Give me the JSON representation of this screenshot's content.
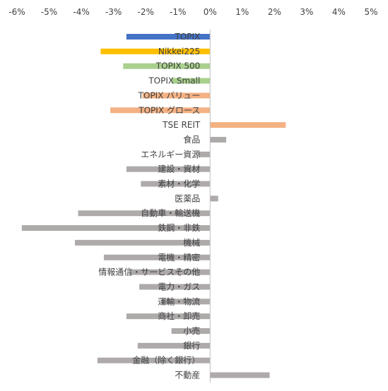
{
  "chart_data": {
    "type": "bar",
    "orientation": "horizontal",
    "x_ticks": [
      "-6%",
      "-5%",
      "-4%",
      "-3%",
      "-2%",
      "-1%",
      "0%",
      "1%",
      "2%",
      "3%",
      "4%",
      "5%"
    ],
    "xlim": [
      -6,
      5
    ],
    "grid": false,
    "colors": {
      "topix": "#4472C4",
      "nikkei": "#FFC000",
      "green": "#A9D18E",
      "orange": "#F4B183",
      "gray": "#AEAAAA"
    },
    "bars": [
      {
        "label": "TOPIX",
        "value": -2.6,
        "color": "#4472C4"
      },
      {
        "label": "Nikkei225",
        "value": -3.4,
        "color": "#FFC000"
      },
      {
        "label": "TOPIX 500",
        "value": -2.7,
        "color": "#A9D18E"
      },
      {
        "label": "TOPIX Small",
        "value": -1.2,
        "color": "#A9D18E"
      },
      {
        "label": "TOPIX バリュー",
        "value": -2.1,
        "color": "#F4B183"
      },
      {
        "label": "TOPIX グロース",
        "value": -3.1,
        "color": "#F4B183"
      },
      {
        "label": "TSE REIT",
        "value": 2.35,
        "color": "#F4B183"
      },
      {
        "label": "食品",
        "value": 0.5,
        "color": "#AEAAAA"
      },
      {
        "label": "エネルギー資源",
        "value": -0.35,
        "color": "#AEAAAA"
      },
      {
        "label": "建設・資材",
        "value": -2.6,
        "color": "#AEAAAA"
      },
      {
        "label": "素材・化学",
        "value": -2.15,
        "color": "#AEAAAA"
      },
      {
        "label": "医薬品",
        "value": 0.25,
        "color": "#AEAAAA"
      },
      {
        "label": "自動車・輸送機",
        "value": -4.1,
        "color": "#AEAAAA"
      },
      {
        "label": "鉄鋼・非鉄",
        "value": -5.85,
        "color": "#AEAAAA"
      },
      {
        "label": "機械",
        "value": -4.2,
        "color": "#AEAAAA"
      },
      {
        "label": "電機・精密",
        "value": -3.3,
        "color": "#AEAAAA"
      },
      {
        "label": "情報通信・サービスその他",
        "value": -2.5,
        "color": "#AEAAAA"
      },
      {
        "label": "電力・ガス",
        "value": -2.2,
        "color": "#AEAAAA"
      },
      {
        "label": "運輸・物流",
        "value": -1.5,
        "color": "#AEAAAA"
      },
      {
        "label": "商社・卸売",
        "value": -2.6,
        "color": "#AEAAAA"
      },
      {
        "label": "小売",
        "value": -1.2,
        "color": "#AEAAAA"
      },
      {
        "label": "銀行",
        "value": -2.25,
        "color": "#AEAAAA"
      },
      {
        "label": "金融（除く銀行）",
        "value": -3.5,
        "color": "#AEAAAA"
      },
      {
        "label": "不動産",
        "value": 1.85,
        "color": "#AEAAAA"
      }
    ]
  }
}
